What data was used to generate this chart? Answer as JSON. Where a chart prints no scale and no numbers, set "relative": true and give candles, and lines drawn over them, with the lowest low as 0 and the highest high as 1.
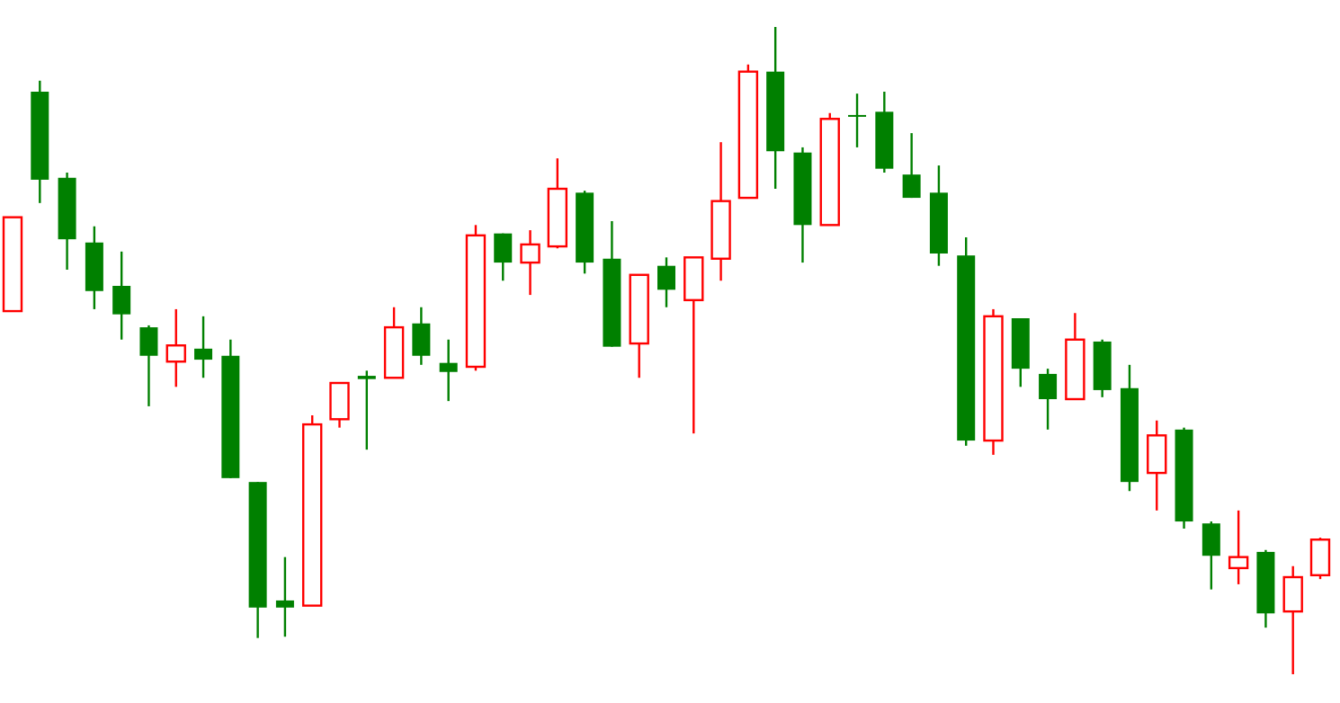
{
  "chart_data": {
    "type": "candlestick",
    "relative": true,
    "categories": [
      null,
      null,
      null,
      null,
      null,
      null,
      null,
      null,
      null,
      null,
      null,
      null,
      null,
      null,
      null,
      null,
      null,
      null,
      null,
      null,
      null,
      null,
      null,
      null,
      null,
      null,
      null,
      null,
      null,
      null,
      null,
      null,
      null,
      null,
      null,
      null,
      null,
      null,
      null,
      null,
      null,
      null,
      null,
      null,
      null,
      null,
      null,
      null,
      null
    ],
    "ohlc": [
      [
        0.561,
        0.706,
        0.561,
        0.706
      ],
      [
        0.9,
        0.917,
        0.728,
        0.764
      ],
      [
        0.767,
        0.775,
        0.625,
        0.672
      ],
      [
        0.667,
        0.692,
        0.564,
        0.592
      ],
      [
        0.6,
        0.653,
        0.517,
        0.556
      ],
      [
        0.536,
        0.539,
        0.414,
        0.492
      ],
      [
        0.483,
        0.564,
        0.444,
        0.508
      ],
      [
        0.503,
        0.553,
        0.458,
        0.486
      ],
      [
        0.492,
        0.517,
        0.303,
        0.303
      ],
      [
        0.297,
        0.297,
        0.056,
        0.103
      ],
      [
        0.114,
        0.181,
        0.058,
        0.103
      ],
      [
        0.106,
        0.4,
        0.106,
        0.386
      ],
      [
        0.394,
        0.45,
        0.381,
        0.45
      ],
      [
        0.461,
        0.469,
        0.347,
        0.456
      ],
      [
        0.458,
        0.567,
        0.458,
        0.536
      ],
      [
        0.542,
        0.567,
        0.478,
        0.492
      ],
      [
        0.481,
        0.517,
        0.422,
        0.467
      ],
      [
        0.475,
        0.694,
        0.469,
        0.678
      ],
      [
        0.681,
        0.681,
        0.608,
        0.636
      ],
      [
        0.636,
        0.686,
        0.586,
        0.664
      ],
      [
        0.661,
        0.797,
        0.658,
        0.75
      ],
      [
        0.744,
        0.747,
        0.619,
        0.636
      ],
      [
        0.642,
        0.7,
        0.506,
        0.506
      ],
      [
        0.511,
        0.617,
        0.458,
        0.617
      ],
      [
        0.631,
        0.644,
        0.567,
        0.594
      ],
      [
        0.578,
        0.644,
        0.372,
        0.644
      ],
      [
        0.642,
        0.822,
        0.608,
        0.731
      ],
      [
        0.736,
        0.942,
        0.736,
        0.931
      ],
      [
        0.931,
        1,
        0.75,
        0.808
      ],
      [
        0.806,
        0.814,
        0.636,
        0.694
      ],
      [
        0.694,
        0.867,
        0.694,
        0.858
      ],
      [
        0.864,
        0.897,
        0.814,
        0.864
      ],
      [
        0.869,
        0.9,
        0.775,
        0.781
      ],
      [
        0.772,
        0.836,
        0.736,
        0.736
      ],
      [
        0.744,
        0.786,
        0.631,
        0.65
      ],
      [
        0.647,
        0.675,
        0.353,
        0.361
      ],
      [
        0.361,
        0.564,
        0.339,
        0.553
      ],
      [
        0.55,
        0.55,
        0.444,
        0.472
      ],
      [
        0.464,
        0.472,
        0.378,
        0.425
      ],
      [
        0.425,
        0.558,
        0.425,
        0.517
      ],
      [
        0.514,
        0.517,
        0.428,
        0.439
      ],
      [
        0.442,
        0.478,
        0.283,
        0.297
      ],
      [
        0.311,
        0.392,
        0.253,
        0.369
      ],
      [
        0.378,
        0.381,
        0.225,
        0.236
      ],
      [
        0.233,
        0.236,
        0.131,
        0.183
      ],
      [
        0.164,
        0.253,
        0.139,
        0.181
      ],
      [
        0.189,
        0.192,
        0.072,
        0.094
      ],
      [
        0.097,
        0.167,
        0,
        0.15
      ],
      [
        0.153,
        0.211,
        0.147,
        0.208
      ]
    ],
    "colors": [
      "#ff0000",
      "#008000",
      "#008000",
      "#008000",
      "#008000",
      "#008000",
      "#ff0000",
      "#008000",
      "#008000",
      "#008000",
      "#008000",
      "#ff0000",
      "#ff0000",
      "#008000",
      "#ff0000",
      "#008000",
      "#008000",
      "#ff0000",
      "#008000",
      "#ff0000",
      "#ff0000",
      "#008000",
      "#008000",
      "#ff0000",
      "#008000",
      "#ff0000",
      "#ff0000",
      "#ff0000",
      "#008000",
      "#008000",
      "#ff0000",
      "#008000",
      "#008000",
      "#008000",
      "#008000",
      "#008000",
      "#ff0000",
      "#008000",
      "#008000",
      "#ff0000",
      "#008000",
      "#008000",
      "#ff0000",
      "#008000",
      "#008000",
      "#ff0000",
      "#008000",
      "#ff0000",
      "#ff0000"
    ]
  }
}
